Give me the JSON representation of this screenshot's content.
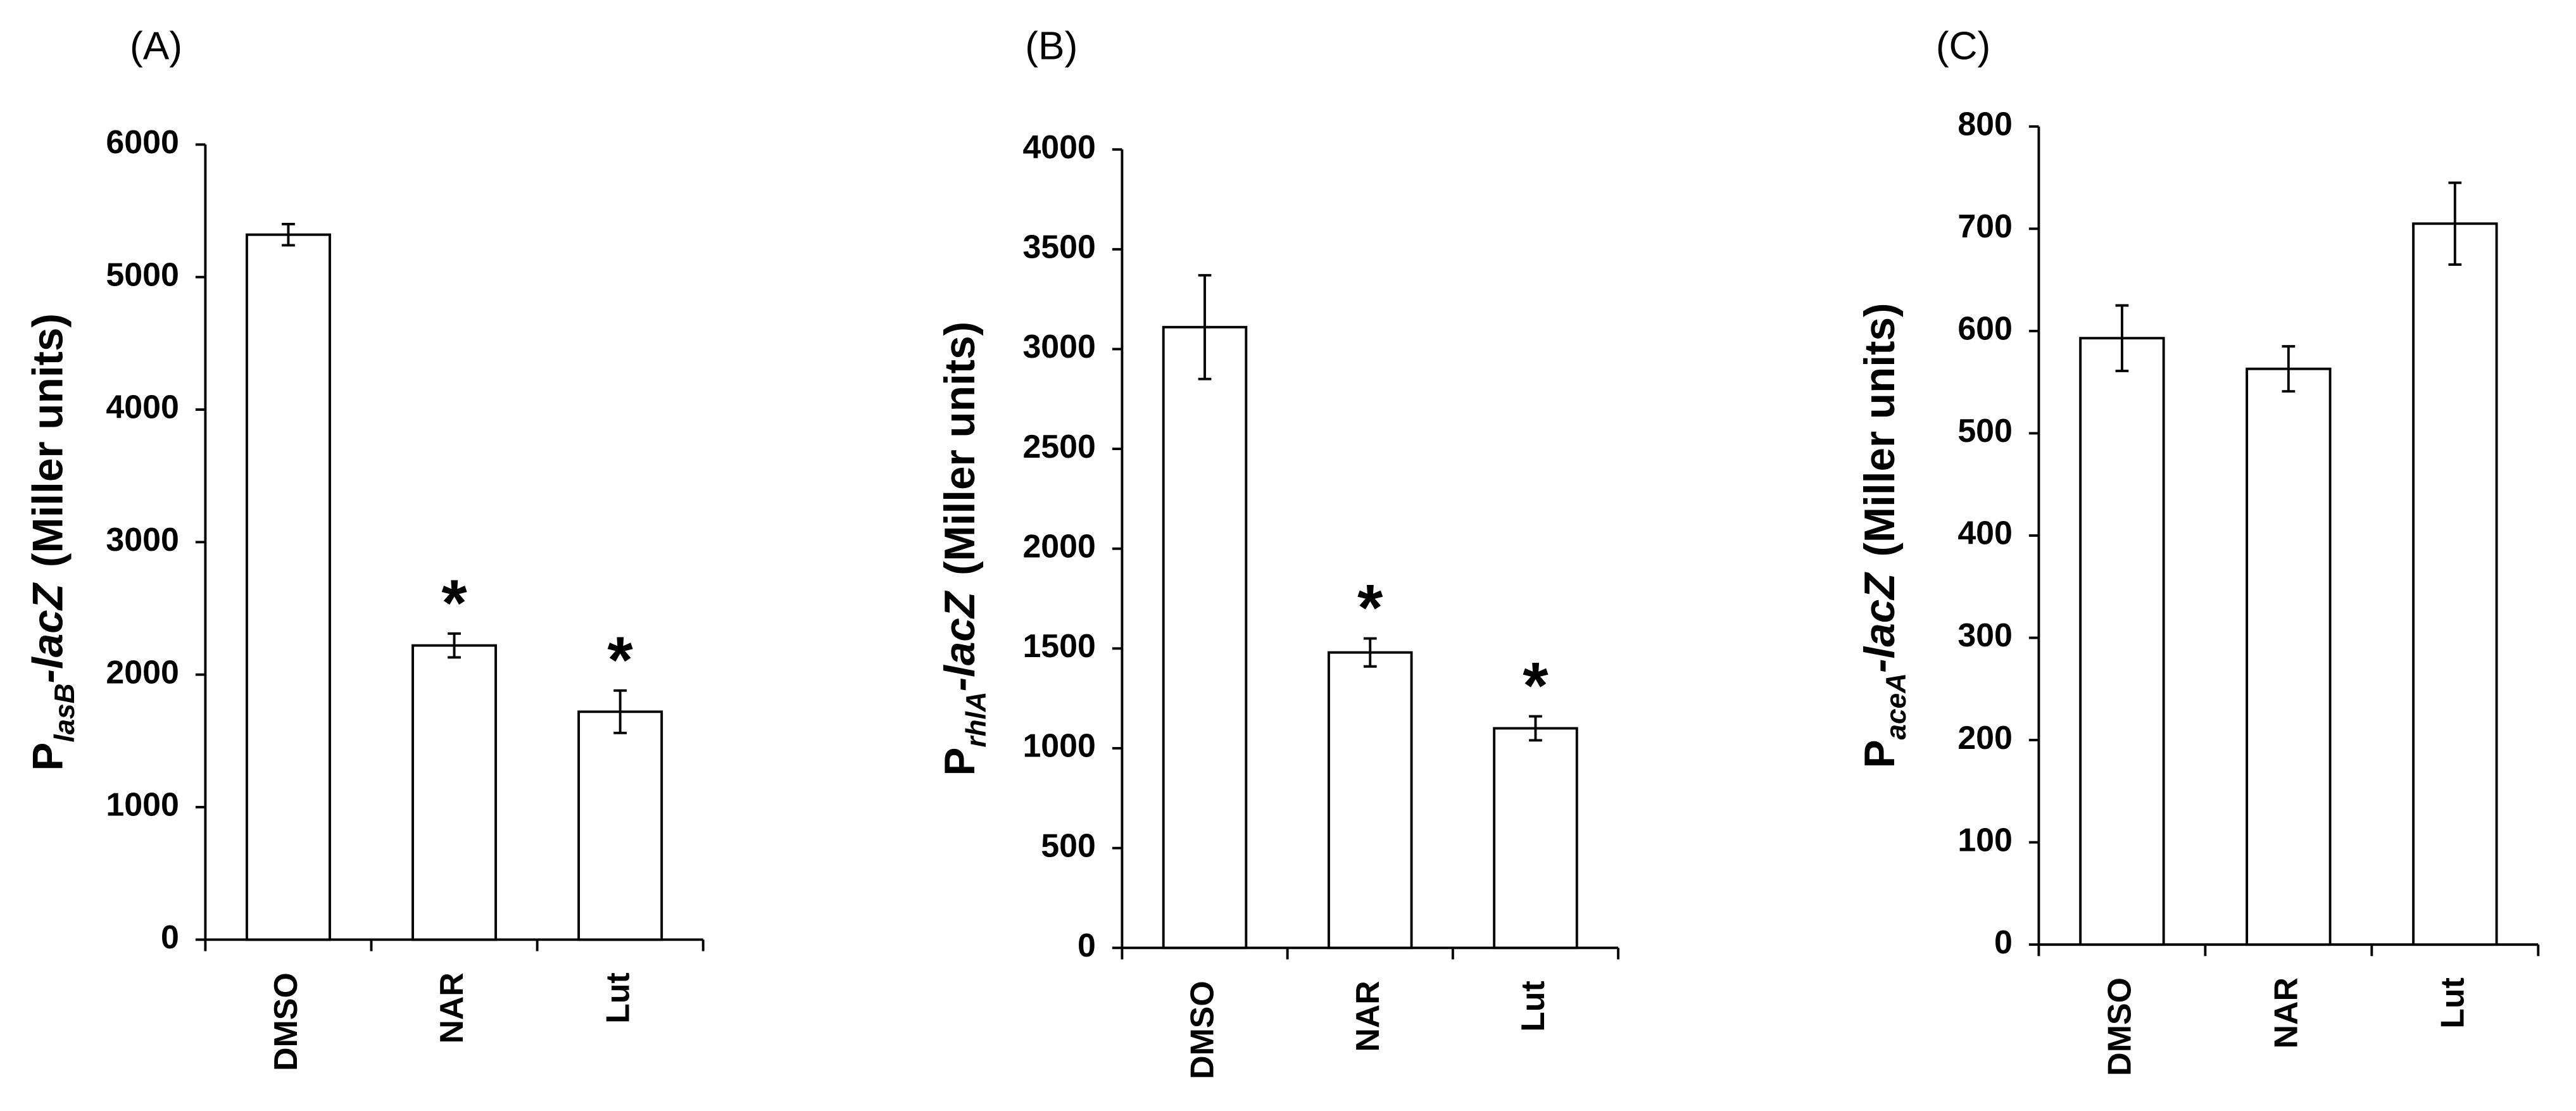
{
  "chart_data": [
    {
      "type": "bar",
      "panel_label": "(A)",
      "ylabel": {
        "prefix": "P",
        "subscript": "lasB",
        "suffix": "-lacZ",
        "units": "(Miller units)"
      },
      "categories": [
        "DMSO",
        "NAR",
        "Lut"
      ],
      "values": [
        5320,
        2220,
        1720
      ],
      "errors": [
        80,
        90,
        160
      ],
      "annotations": [
        null,
        "*",
        "*"
      ],
      "color": "#ffffff",
      "edgecolor": "#000000",
      "ylim": [
        0,
        6000
      ],
      "yticks": [
        0,
        1000,
        2000,
        3000,
        4000,
        5000,
        6000
      ]
    },
    {
      "type": "bar",
      "panel_label": "(B)",
      "ylabel": {
        "prefix": "P",
        "subscript": "rhlA",
        "suffix": "-lacZ",
        "units": "(Miller units)"
      },
      "categories": [
        "DMSO",
        "NAR",
        "Lut"
      ],
      "values": [
        3110,
        1480,
        1100
      ],
      "errors": [
        260,
        70,
        60
      ],
      "annotations": [
        null,
        "*",
        "*"
      ],
      "color": "#ffffff",
      "edgecolor": "#000000",
      "ylim": [
        0,
        4000
      ],
      "yticks": [
        0,
        500,
        1000,
        1500,
        2000,
        2500,
        3000,
        3500,
        4000
      ]
    },
    {
      "type": "bar",
      "panel_label": "(C)",
      "ylabel": {
        "prefix": "P",
        "subscript": "aceA",
        "suffix": "-lacZ",
        "units": "(Miller units)"
      },
      "categories": [
        "DMSO",
        "NAR",
        "Lut"
      ],
      "values": [
        593,
        563,
        705
      ],
      "errors": [
        32,
        22,
        40
      ],
      "annotations": [
        null,
        null,
        null
      ],
      "color": "#ffffff",
      "edgecolor": "#000000",
      "ylim": [
        0,
        800
      ],
      "yticks": [
        0,
        100,
        200,
        300,
        400,
        500,
        600,
        700,
        800
      ]
    }
  ]
}
